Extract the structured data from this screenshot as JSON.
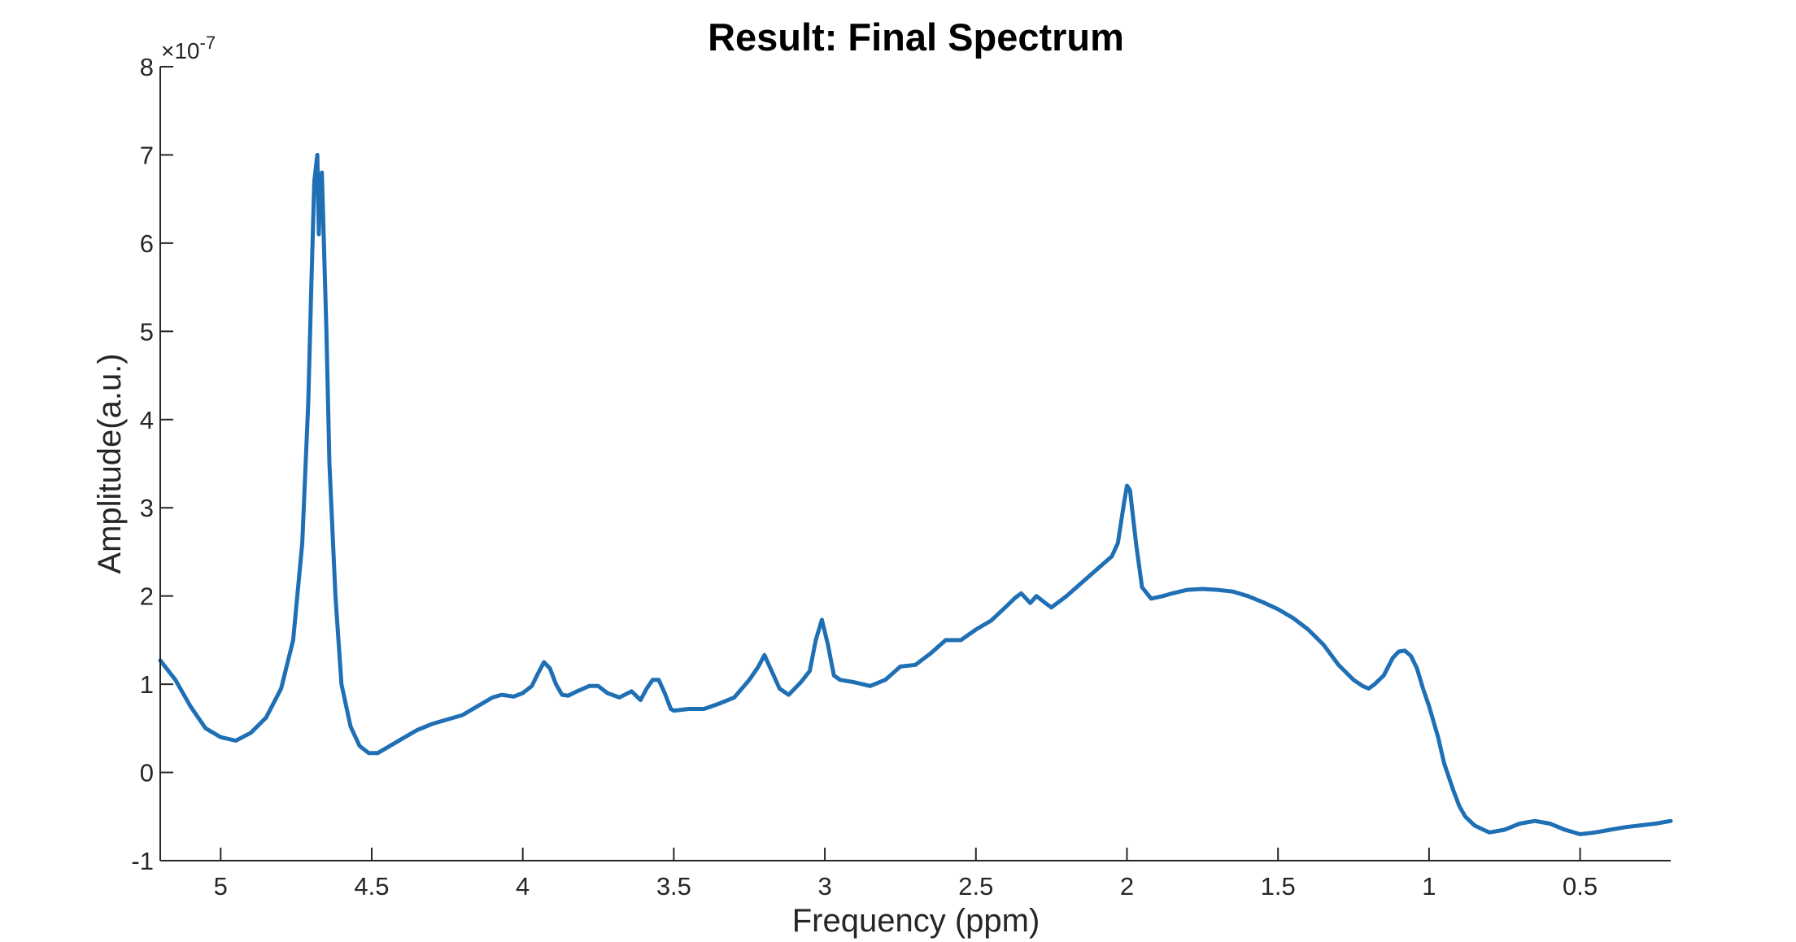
{
  "chart_data": {
    "type": "line",
    "title": "Result: Final Spectrum",
    "xlabel": "Frequency (ppm)",
    "ylabel": "Amplitude(a.u.)",
    "y_exponent_label": "×10",
    "y_exponent_power": "-7",
    "x_reversed": true,
    "xlim": [
      0.2,
      5.2
    ],
    "ylim": [
      -1,
      8
    ],
    "x_ticks": [
      5,
      4.5,
      4,
      3.5,
      3,
      2.5,
      2,
      1.5,
      1,
      0.5
    ],
    "x_tick_labels": [
      "5",
      "4.5",
      "4",
      "3.5",
      "3",
      "2.5",
      "2",
      "1.5",
      "1",
      "0.5"
    ],
    "y_ticks": [
      -1,
      0,
      1,
      2,
      3,
      4,
      5,
      6,
      7,
      8
    ],
    "y_tick_labels": [
      "-1",
      "0",
      "1",
      "2",
      "3",
      "4",
      "5",
      "6",
      "7",
      "8"
    ],
    "grid": false,
    "series": [
      {
        "color": "#1f6fb5",
        "x": [
          5.2,
          5.15,
          5.1,
          5.05,
          5.0,
          4.95,
          4.9,
          4.85,
          4.8,
          4.76,
          4.73,
          4.71,
          4.7,
          4.69,
          4.68,
          4.675,
          4.67,
          4.665,
          4.66,
          4.65,
          4.64,
          4.62,
          4.6,
          4.57,
          4.54,
          4.51,
          4.48,
          4.45,
          4.4,
          4.35,
          4.3,
          4.25,
          4.2,
          4.15,
          4.1,
          4.07,
          4.03,
          4.0,
          3.97,
          3.95,
          3.93,
          3.91,
          3.89,
          3.87,
          3.85,
          3.82,
          3.78,
          3.75,
          3.72,
          3.68,
          3.64,
          3.61,
          3.59,
          3.57,
          3.55,
          3.53,
          3.51,
          3.5,
          3.45,
          3.4,
          3.35,
          3.3,
          3.25,
          3.22,
          3.2,
          3.18,
          3.15,
          3.12,
          3.08,
          3.05,
          3.03,
          3.01,
          2.99,
          2.97,
          2.95,
          2.9,
          2.85,
          2.8,
          2.75,
          2.7,
          2.65,
          2.6,
          2.55,
          2.5,
          2.45,
          2.4,
          2.37,
          2.35,
          2.32,
          2.3,
          2.27,
          2.25,
          2.2,
          2.15,
          2.1,
          2.05,
          2.03,
          2.01,
          2.0,
          1.99,
          1.97,
          1.95,
          1.92,
          1.88,
          1.85,
          1.8,
          1.75,
          1.7,
          1.65,
          1.6,
          1.55,
          1.5,
          1.45,
          1.4,
          1.35,
          1.3,
          1.25,
          1.22,
          1.2,
          1.18,
          1.15,
          1.12,
          1.1,
          1.08,
          1.06,
          1.04,
          1.02,
          1.0,
          0.97,
          0.95,
          0.92,
          0.9,
          0.88,
          0.85,
          0.82,
          0.8,
          0.75,
          0.7,
          0.65,
          0.6,
          0.55,
          0.5,
          0.45,
          0.4,
          0.35,
          0.3,
          0.25,
          0.2
        ],
        "y": [
          1.27,
          1.05,
          0.75,
          0.5,
          0.4,
          0.36,
          0.45,
          0.62,
          0.95,
          1.5,
          2.6,
          4.2,
          5.5,
          6.7,
          7.0,
          6.1,
          6.7,
          6.8,
          6.2,
          5.0,
          3.5,
          2.0,
          1.0,
          0.52,
          0.3,
          0.22,
          0.22,
          0.28,
          0.38,
          0.48,
          0.55,
          0.6,
          0.65,
          0.75,
          0.85,
          0.88,
          0.86,
          0.9,
          0.98,
          1.12,
          1.25,
          1.18,
          1.0,
          0.88,
          0.87,
          0.92,
          0.98,
          0.98,
          0.9,
          0.85,
          0.92,
          0.82,
          0.95,
          1.05,
          1.05,
          0.9,
          0.72,
          0.7,
          0.72,
          0.72,
          0.78,
          0.85,
          1.05,
          1.2,
          1.33,
          1.18,
          0.95,
          0.88,
          1.02,
          1.15,
          1.5,
          1.73,
          1.45,
          1.1,
          1.05,
          1.02,
          0.98,
          1.05,
          1.2,
          1.22,
          1.35,
          1.5,
          1.5,
          1.62,
          1.72,
          1.88,
          1.98,
          2.03,
          1.92,
          2.0,
          1.92,
          1.87,
          2.0,
          2.15,
          2.3,
          2.45,
          2.6,
          3.05,
          3.25,
          3.2,
          2.6,
          2.1,
          1.97,
          2.0,
          2.03,
          2.07,
          2.08,
          2.07,
          2.05,
          2.0,
          1.93,
          1.85,
          1.75,
          1.62,
          1.45,
          1.22,
          1.05,
          0.98,
          0.95,
          1.0,
          1.1,
          1.3,
          1.37,
          1.38,
          1.32,
          1.18,
          0.95,
          0.75,
          0.4,
          0.1,
          -0.2,
          -0.38,
          -0.5,
          -0.6,
          -0.65,
          -0.68,
          -0.65,
          -0.58,
          -0.55,
          -0.58,
          -0.65,
          -0.7,
          -0.68,
          -0.65,
          -0.62,
          -0.6,
          -0.58,
          -0.55
        ]
      }
    ]
  }
}
